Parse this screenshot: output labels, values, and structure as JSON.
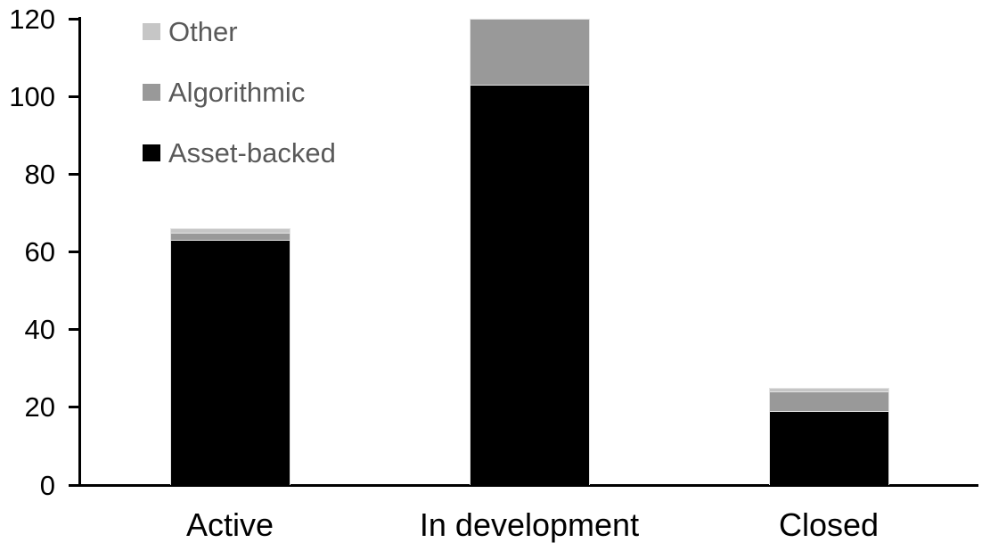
{
  "chart_data": {
    "type": "bar",
    "stacked": true,
    "title": "",
    "xlabel": "",
    "ylabel": "",
    "categories": [
      "Active",
      "In development",
      "Closed"
    ],
    "series": [
      {
        "name": "Asset-backed",
        "color": "#000000",
        "values": [
          63,
          103,
          19
        ]
      },
      {
        "name": "Algorithmic",
        "color": "#999999",
        "values": [
          2,
          17,
          5
        ]
      },
      {
        "name": "Other",
        "color": "#c6c6c6",
        "values": [
          1,
          0,
          1
        ]
      }
    ],
    "stack_totals": [
      66,
      120,
      25
    ],
    "ylim": [
      0,
      120
    ],
    "yticks": [
      0,
      20,
      40,
      60,
      80,
      100,
      120
    ],
    "grid": false,
    "legend": {
      "position": "top-left",
      "items": [
        "Other",
        "Algorithmic",
        "Asset-backed"
      ]
    },
    "colors": {
      "axis": "#000000",
      "tick_label": "#000000",
      "category_label": "#000000",
      "legend_text": "#595959",
      "background": "#ffffff"
    }
  }
}
